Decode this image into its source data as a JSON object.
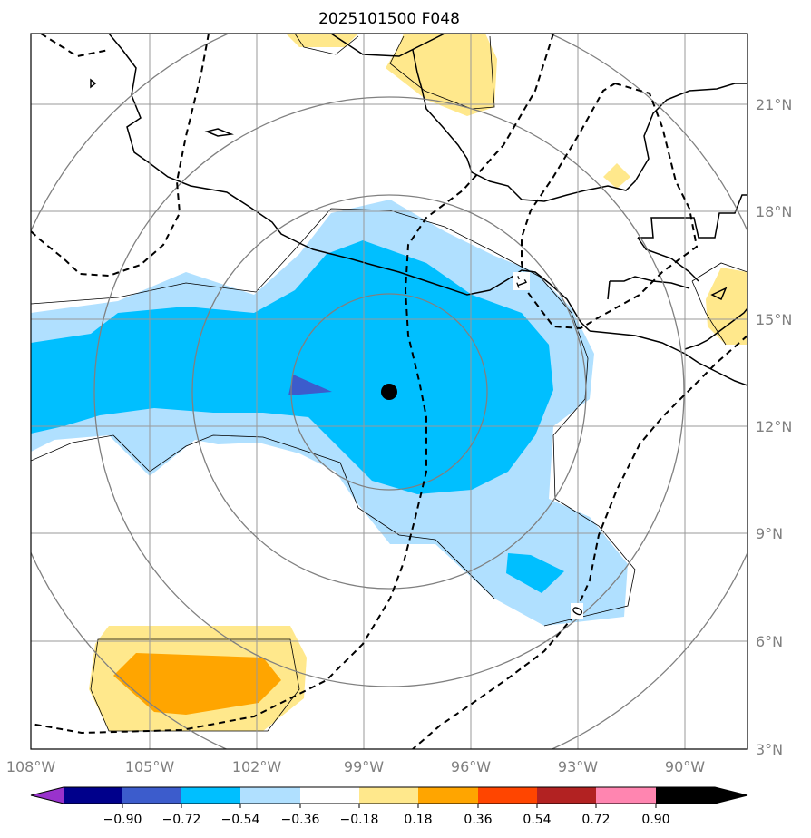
{
  "title": "2025101500 F048",
  "lon_labels": [
    "108°W",
    "105°W",
    "102°W",
    "99°W",
    "96°W",
    "93°W",
    "90°W"
  ],
  "lat_labels": [
    "21°N",
    "18°N",
    "15°N",
    "12°N",
    "9°N",
    "6°N",
    "3°N"
  ],
  "contour_labels": [
    "-1",
    "0"
  ],
  "colorbar": {
    "tick_labels": [
      "−0.90",
      "−0.72",
      "−0.54",
      "−0.36",
      "−0.18",
      "0.18",
      "0.36",
      "0.54",
      "0.72",
      "0.90"
    ],
    "colors": [
      "#9932cc",
      "#00008b",
      "#3c5ccc",
      "#00bfff",
      "#b0e0ff",
      "#ffffff",
      "#ffe88c",
      "#ffa500",
      "#ff4500",
      "#b22222",
      "#ff85b0"
    ]
  },
  "chart_data": {
    "type": "map",
    "title": "2025101500 F048",
    "lon_range": [
      "108.5°W",
      "88.5°W"
    ],
    "lat_range": [
      "3°N",
      "23°N"
    ],
    "storm_center": {
      "lon": "97.7°W",
      "lat": "13°N"
    },
    "fill_levels": [
      -0.9,
      -0.72,
      -0.54,
      -0.36,
      -0.18,
      0.18,
      0.36,
      0.54,
      0.72,
      0.9
    ],
    "dashed_contours": [
      "-1",
      "0"
    ]
  }
}
